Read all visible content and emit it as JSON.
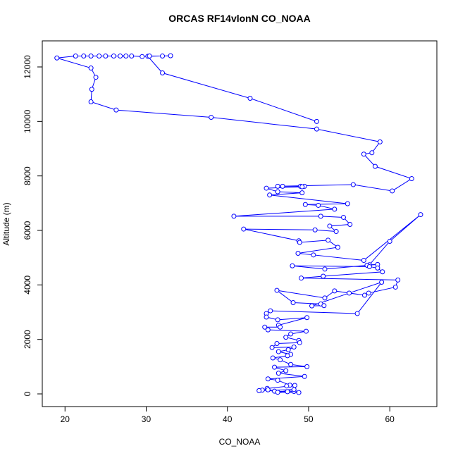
{
  "chart_data": {
    "type": "line",
    "title": "ORCAS RF14vlonN CO_NOAA",
    "x_label": "CO_NOAA",
    "y_label": "Altitude (m)",
    "color": "#0000ff",
    "xlim": [
      17.2,
      65.8
    ],
    "ylim": [
      -465,
      12957
    ],
    "xticks": [
      20,
      30,
      40,
      50,
      60
    ],
    "yticks": [
      0,
      2000,
      4000,
      6000,
      8000,
      10000,
      12000
    ],
    "x": [
      51,
      42.8,
      32,
      30.2,
      33,
      32,
      30.4,
      29.5,
      28.2,
      27.5,
      26.8,
      26,
      25,
      24.2,
      23.2,
      22.3,
      21.3,
      19,
      23.2,
      23.8,
      23.3,
      23.2,
      26.3,
      38,
      51,
      58.8,
      57.8,
      56.8,
      58.2,
      62.7,
      60.3,
      55.5,
      46.2,
      46.8,
      49,
      49.5,
      49.2,
      44.8,
      46.2,
      49.2,
      45.2,
      54.8,
      49.6,
      51.2,
      53.2,
      40.8,
      51.5,
      54.3,
      55.1,
      52.6,
      53.4,
      50.8,
      42,
      48.8,
      48.9,
      52.4,
      53.6,
      48.7,
      50.6,
      56.8,
      63.8,
      60,
      57.5,
      58.5,
      57.2,
      52,
      48,
      57.5,
      58.5,
      59.1,
      51.8,
      49.1,
      61,
      60.7,
      57.4,
      56.9,
      53.2,
      52,
      46.1,
      48.1,
      51.5,
      51.9,
      50.4,
      55,
      59,
      56,
      45.3,
      44.8,
      44.8,
      46.2,
      49.8,
      46.3,
      46.5,
      44.6,
      45,
      49.7,
      47.8,
      47.2,
      48.8,
      48.9,
      46.1,
      45.5,
      48.2,
      47.5,
      46.3,
      47.8,
      47.4,
      45.6,
      46.5,
      47.8,
      49.8,
      45.8,
      47.2,
      46.3,
      49.5,
      45,
      46.2,
      47.7,
      47.3,
      48.3,
      44.9,
      45,
      44.3,
      45.8,
      47.4,
      48.2,
      48.8,
      46.2,
      48.2,
      43.9
    ],
    "values": [
      10000,
      10850,
      11780,
      12390,
      12410,
      12400,
      12400,
      12380,
      12400,
      12400,
      12400,
      12400,
      12400,
      12400,
      12400,
      12400,
      12400,
      12330,
      11960,
      11620,
      11180,
      10720,
      10420,
      10150,
      9720,
      9250,
      8850,
      8800,
      8350,
      7900,
      7450,
      7680,
      7620,
      7620,
      7620,
      7620,
      7600,
      7550,
      7420,
      7380,
      7300,
      6980,
      6950,
      6920,
      6780,
      6520,
      6520,
      6480,
      6220,
      6160,
      5960,
      6020,
      6050,
      5620,
      5560,
      5640,
      5380,
      5160,
      5100,
      4900,
      6580,
      5600,
      4740,
      4750,
      4720,
      4580,
      4700,
      4670,
      4620,
      4480,
      4320,
      4250,
      4180,
      3920,
      3700,
      3620,
      3780,
      3520,
      3800,
      3350,
      3300,
      3240,
      3230,
      3700,
      4100,
      2950,
      3050,
      2950,
      2820,
      2720,
      2800,
      2520,
      2450,
      2450,
      2350,
      2300,
      2200,
      2080,
      1960,
      1880,
      1850,
      1700,
      1720,
      1620,
      1550,
      1450,
      1400,
      1320,
      1250,
      1080,
      1000,
      980,
      850,
      760,
      640,
      550,
      500,
      320,
      290,
      310,
      200,
      150,
      140,
      100,
      80,
      90,
      50,
      60,
      160,
      120
    ]
  }
}
